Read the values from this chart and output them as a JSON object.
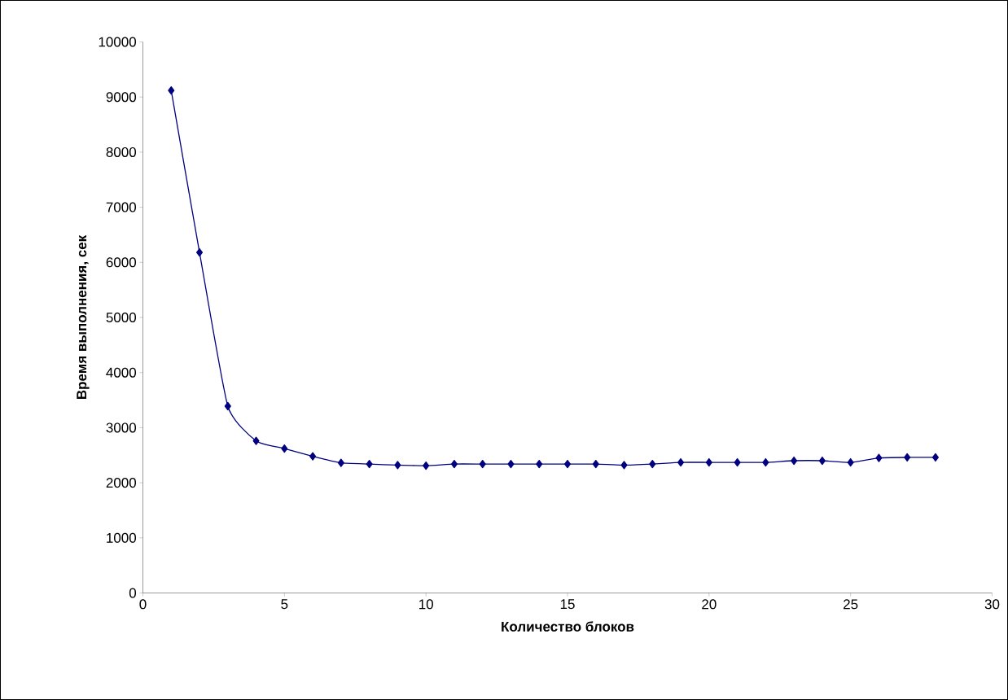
{
  "chart_data": {
    "type": "line",
    "xlabel": "Количество блоков",
    "ylabel": "Время выполнения, сек",
    "x": [
      1,
      2,
      3,
      4,
      5,
      6,
      7,
      8,
      9,
      10,
      11,
      12,
      13,
      14,
      15,
      16,
      17,
      18,
      19,
      20,
      21,
      22,
      23,
      24,
      25,
      26,
      27,
      28
    ],
    "series": [
      {
        "color": "#000080",
        "values": [
          9120,
          6180,
          3390,
          2760,
          2620,
          2480,
          2360,
          2340,
          2320,
          2310,
          2340,
          2340,
          2340,
          2340,
          2340,
          2340,
          2320,
          2340,
          2370,
          2370,
          2370,
          2370,
          2400,
          2400,
          2370,
          2450,
          2460,
          2460
        ]
      }
    ],
    "xlim": [
      0,
      30
    ],
    "xticks": [
      0,
      5,
      10,
      15,
      20,
      25,
      30
    ],
    "ylim": [
      0,
      10000
    ],
    "yticks": [
      0,
      1000,
      2000,
      3000,
      4000,
      5000,
      6000,
      7000,
      8000,
      9000,
      10000
    ],
    "grid": false,
    "marker": "diamond",
    "line_style": "solid"
  }
}
